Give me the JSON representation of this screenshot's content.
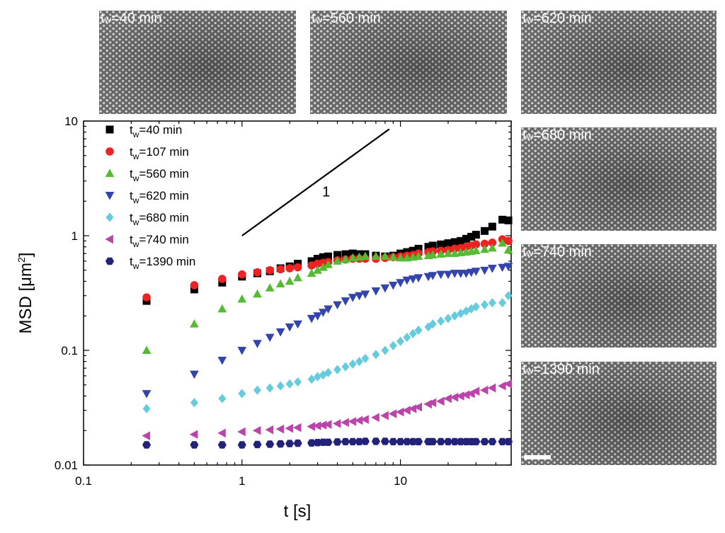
{
  "colors": {
    "tw_40": "#000000",
    "tw_107": "#ee2222",
    "tw_560": "#55bb33",
    "tw_620": "#3344aa",
    "tw_680": "#66ccdd",
    "tw_740": "#bb44aa",
    "tw_1390": "#22227a"
  },
  "micrographs": [
    {
      "label_t": "t",
      "label_sub": "w",
      "label_value": "=40 min"
    },
    {
      "label_t": "t",
      "label_sub": "w",
      "label_value": "=560 min"
    },
    {
      "label_t": "t",
      "label_sub": "w",
      "label_value": "=620 min"
    },
    {
      "label_t": "t",
      "label_sub": "w",
      "label_value": "=680 min"
    },
    {
      "label_t": "t",
      "label_sub": "w",
      "label_value": "=740 min"
    },
    {
      "label_t": "t",
      "label_sub": "w",
      "label_value": "=1390 min"
    }
  ],
  "chart_data": {
    "type": "scatter",
    "xscale": "log",
    "yscale": "log",
    "xlabel": "t [s]",
    "ylabel_main": "MSD [μm",
    "ylabel_sup": "2",
    "ylabel_close": "]",
    "xlim": [
      0.1,
      50
    ],
    "ylim": [
      0.01,
      10
    ],
    "xticks": [
      {
        "value": 0.1,
        "label": "0.1"
      },
      {
        "value": 1,
        "label": "1"
      },
      {
        "value": 10,
        "label": "10"
      }
    ],
    "yticks": [
      {
        "value": 0.01,
        "label": "0.01"
      },
      {
        "value": 0.1,
        "label": "0.1"
      },
      {
        "value": 1,
        "label": "1"
      },
      {
        "value": 10,
        "label": "10"
      }
    ],
    "guide_line": {
      "x": [
        1,
        8.5
      ],
      "y": [
        1,
        8.5
      ],
      "label": "1",
      "label_at": [
        3.4,
        2.2
      ]
    },
    "legend_position": "top-left",
    "x": [
      0.25,
      0.5,
      0.75,
      1,
      1.25,
      1.5,
      1.75,
      2,
      2.25,
      2.75,
      3,
      3.25,
      3.5,
      4,
      4.5,
      5,
      5.5,
      6,
      7,
      8,
      9,
      10,
      11,
      12,
      13,
      15,
      16,
      18,
      20,
      22,
      24,
      26,
      28,
      30,
      34,
      38,
      44,
      48
    ],
    "series": [
      {
        "name": "t_w=40 min",
        "legend_t": "t",
        "legend_sub": "w",
        "legend_value": "=40 min",
        "marker": "square",
        "color_key": "tw_40",
        "values": [
          0.27,
          0.34,
          0.39,
          0.44,
          0.47,
          0.49,
          0.52,
          0.54,
          0.57,
          0.6,
          0.63,
          0.65,
          0.66,
          0.68,
          0.69,
          0.7,
          0.69,
          0.69,
          0.67,
          0.66,
          0.67,
          0.7,
          0.72,
          0.74,
          0.77,
          0.8,
          0.82,
          0.84,
          0.86,
          0.88,
          0.9,
          0.94,
          0.98,
          1.02,
          1.1,
          1.2,
          1.38,
          1.36
        ]
      },
      {
        "name": "t_w=107 min",
        "legend_t": "t",
        "legend_sub": "w",
        "legend_value": "=107 min",
        "marker": "circle",
        "color_key": "tw_107",
        "values": [
          0.29,
          0.37,
          0.42,
          0.46,
          0.48,
          0.5,
          0.51,
          0.52,
          0.53,
          0.55,
          0.57,
          0.58,
          0.59,
          0.61,
          0.62,
          0.63,
          0.63,
          0.63,
          0.63,
          0.64,
          0.65,
          0.66,
          0.67,
          0.68,
          0.7,
          0.72,
          0.73,
          0.74,
          0.75,
          0.77,
          0.78,
          0.8,
          0.82,
          0.84,
          0.85,
          0.87,
          0.93,
          0.9
        ]
      },
      {
        "name": "t_w=560 min",
        "legend_t": "t",
        "legend_sub": "w",
        "legend_value": "=560 min",
        "marker": "triangle-up",
        "color_key": "tw_560",
        "values": [
          0.1,
          0.17,
          0.23,
          0.28,
          0.31,
          0.35,
          0.38,
          0.4,
          0.43,
          0.47,
          0.5,
          0.53,
          0.56,
          0.6,
          0.62,
          0.64,
          0.65,
          0.66,
          0.66,
          0.66,
          0.65,
          0.64,
          0.64,
          0.65,
          0.66,
          0.67,
          0.68,
          0.69,
          0.7,
          0.7,
          0.71,
          0.72,
          0.73,
          0.74,
          0.76,
          0.78,
          0.86,
          0.75
        ]
      },
      {
        "name": "t_w=620 min",
        "legend_t": "t",
        "legend_sub": "w",
        "legend_value": "=620 min",
        "marker": "triangle-down",
        "color_key": "tw_620",
        "values": [
          0.042,
          0.062,
          0.082,
          0.1,
          0.115,
          0.13,
          0.145,
          0.16,
          0.17,
          0.19,
          0.2,
          0.215,
          0.23,
          0.25,
          0.27,
          0.29,
          0.3,
          0.31,
          0.33,
          0.35,
          0.37,
          0.39,
          0.41,
          0.42,
          0.43,
          0.44,
          0.45,
          0.46,
          0.46,
          0.47,
          0.47,
          0.47,
          0.48,
          0.49,
          0.5,
          0.52,
          0.53,
          0.54
        ]
      },
      {
        "name": "t_w=680 min",
        "legend_t": "t",
        "legend_sub": "w",
        "legend_value": "=680 min",
        "marker": "diamond",
        "color_key": "tw_680",
        "values": [
          0.031,
          0.035,
          0.038,
          0.042,
          0.045,
          0.047,
          0.049,
          0.051,
          0.053,
          0.056,
          0.059,
          0.061,
          0.064,
          0.068,
          0.072,
          0.076,
          0.08,
          0.085,
          0.092,
          0.1,
          0.11,
          0.12,
          0.13,
          0.14,
          0.15,
          0.16,
          0.17,
          0.18,
          0.19,
          0.2,
          0.21,
          0.22,
          0.23,
          0.24,
          0.25,
          0.26,
          0.26,
          0.3
        ]
      },
      {
        "name": "t_w=740 min",
        "legend_t": "t",
        "legend_sub": "w",
        "legend_value": "=740 min",
        "marker": "triangle-left",
        "color_key": "tw_740",
        "values": [
          0.018,
          0.0185,
          0.019,
          0.0195,
          0.02,
          0.0203,
          0.0206,
          0.0209,
          0.0212,
          0.0217,
          0.022,
          0.0223,
          0.0226,
          0.023,
          0.0235,
          0.024,
          0.0245,
          0.025,
          0.026,
          0.027,
          0.028,
          0.029,
          0.03,
          0.031,
          0.032,
          0.034,
          0.035,
          0.036,
          0.038,
          0.039,
          0.04,
          0.041,
          0.042,
          0.044,
          0.045,
          0.047,
          0.049,
          0.051
        ]
      },
      {
        "name": "t_w=1390 min",
        "legend_t": "t",
        "legend_sub": "w",
        "legend_value": "=1390 min",
        "marker": "hexagon",
        "color_key": "tw_1390",
        "values": [
          0.015,
          0.015,
          0.015,
          0.015,
          0.0151,
          0.0152,
          0.0153,
          0.0154,
          0.0155,
          0.0156,
          0.0157,
          0.0158,
          0.0158,
          0.0159,
          0.016,
          0.016,
          0.016,
          0.0161,
          0.0161,
          0.0161,
          0.016,
          0.016,
          0.016,
          0.016,
          0.016,
          0.016,
          0.016,
          0.016,
          0.016,
          0.016,
          0.016,
          0.016,
          0.016,
          0.016,
          0.016,
          0.016,
          0.016,
          0.016
        ]
      }
    ]
  }
}
